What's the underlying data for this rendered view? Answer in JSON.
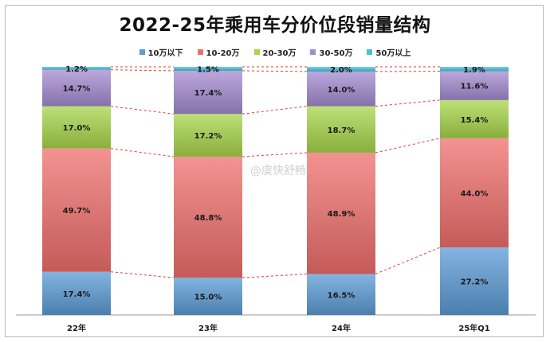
{
  "title": "2022-25年乘用车分价位段销量结构",
  "watermark": "@虞快舒畅",
  "chart_data": {
    "type": "bar",
    "stacked": true,
    "percent": true,
    "categories": [
      "22年",
      "23年",
      "24年",
      "25年Q1"
    ],
    "series": [
      {
        "name": "10万以下",
        "color": "#5b9bd5",
        "values": [
          17.4,
          15.0,
          16.5,
          27.2
        ],
        "labels": [
          "17.4%",
          "15.0%",
          "16.5%",
          "27.2%"
        ]
      },
      {
        "name": "10-20万",
        "color": "#ef6f6c",
        "values": [
          49.7,
          48.8,
          48.9,
          44.0
        ],
        "labels": [
          "49.7%",
          "48.8%",
          "48.9%",
          "44.0%"
        ]
      },
      {
        "name": "20-30万",
        "color": "#a7d64a",
        "values": [
          17.0,
          17.2,
          18.7,
          15.4
        ],
        "labels": [
          "17.0%",
          "17.2%",
          "18.7%",
          "15.4%"
        ]
      },
      {
        "name": "30-50万",
        "color": "#a48bd0",
        "values": [
          14.7,
          17.4,
          14.0,
          11.6
        ],
        "labels": [
          "14.7%",
          "17.4%",
          "14.0%",
          "11.6%"
        ]
      },
      {
        "name": "50万以上",
        "color": "#4bc1dd",
        "values": [
          1.2,
          1.5,
          2.0,
          1.9
        ],
        "labels": [
          "1.2%",
          "1.5%",
          "2.0%",
          "1.9%"
        ]
      }
    ],
    "ylim": [
      0,
      100
    ],
    "grid": false,
    "legend_position": "top",
    "connector_lines": "dashed red between series boundaries"
  }
}
